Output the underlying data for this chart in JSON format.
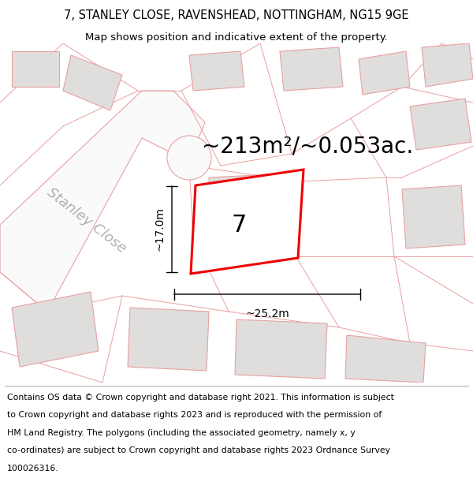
{
  "title_line1": "7, STANLEY CLOSE, RAVENSHEAD, NOTTINGHAM, NG15 9GE",
  "title_line2": "Map shows position and indicative extent of the property.",
  "area_text": "~213m²/~0.053ac.",
  "property_number": "7",
  "dim_height": "~17.0m",
  "dim_width": "~25.2m",
  "road_label": "Stanley Close",
  "map_bg": "#f2f0f0",
  "building_fill": "#e0dddd",
  "building_stroke": "#e8a0a0",
  "highlight_fill": "#ffffff",
  "highlight_stroke": "#ee0000",
  "road_fill": "#fafafa",
  "road_stroke": "#e8a0a0",
  "parcel_stroke": "#e8a0a0",
  "footer_text_lines": [
    "Contains OS data © Crown copyright and database right 2021. This information is subject",
    "to Crown copyright and database rights 2023 and is reproduced with the permission of",
    "HM Land Registry. The polygons (including the associated geometry, namely x, y",
    "co-ordinates) are subject to Crown copyright and database rights 2023 Ordnance Survey",
    "100026316."
  ],
  "title_fontsize": 10.5,
  "subtitle_fontsize": 9.5,
  "footer_fontsize": 7.8,
  "area_fontsize": 20,
  "number_fontsize": 22,
  "road_label_fontsize": 13,
  "dim_fontsize": 10
}
